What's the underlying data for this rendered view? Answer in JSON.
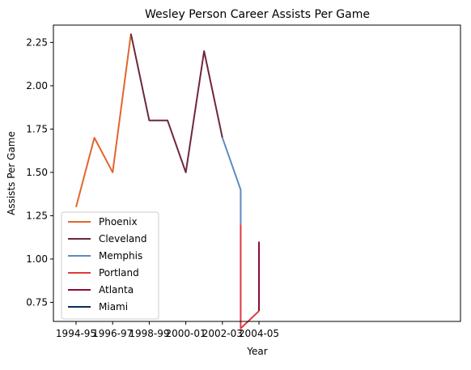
{
  "chart_data": {
    "type": "line",
    "title": "Wesley Person Career Assists Per Game",
    "xlabel": "Year",
    "ylabel": "Assists Per Game",
    "x_tick_labels": [
      "1994-95",
      "1996-97",
      "1998-99",
      "2000-01",
      "2002-03",
      "2004-05"
    ],
    "ylim": [
      0.64,
      2.35
    ],
    "y_ticks": [
      "0.75",
      "1.00",
      "1.25",
      "1.50",
      "1.75",
      "2.00",
      "2.25"
    ],
    "grid": false,
    "legend_position": "lower-left",
    "series": [
      {
        "name": "Phoenix",
        "color": "#e1662c",
        "points": [
          {
            "x": "1994-95",
            "y": 1.3
          },
          {
            "x": "1995-96",
            "y": 1.7
          },
          {
            "x": "1996-97",
            "y": 1.5
          },
          {
            "x": "1997-98",
            "y": 2.3
          }
        ]
      },
      {
        "name": "Cleveland",
        "color": "#6f263d",
        "points": [
          {
            "x": "1997-98",
            "y": 2.3
          },
          {
            "x": "1998-99",
            "y": 1.8
          },
          {
            "x": "1999-00",
            "y": 1.8
          },
          {
            "x": "2000-01",
            "y": 1.5
          },
          {
            "x": "2001-02",
            "y": 2.2
          },
          {
            "x": "2002-03",
            "y": 1.7
          }
        ]
      },
      {
        "name": "Memphis",
        "color": "#5d8bc0",
        "points": [
          {
            "x": "2002-03",
            "y": 1.7
          },
          {
            "x": "2003-04",
            "y": 1.4
          },
          {
            "x": "2003-04",
            "y": 1.2
          }
        ]
      },
      {
        "name": "Portland",
        "color": "#e03a3e",
        "points": [
          {
            "x": "2003-04",
            "y": 1.2
          },
          {
            "x": "2003-04",
            "y": 0.6
          },
          {
            "x": "2004-05",
            "y": 0.7
          }
        ]
      },
      {
        "name": "Atlanta",
        "color": "#8b0a3a",
        "points": [
          {
            "x": "2004-05",
            "y": 0.7
          },
          {
            "x": "2004-05",
            "y": 1.1
          }
        ]
      },
      {
        "name": "Miami",
        "color": "#0b2a5a",
        "points": []
      }
    ]
  }
}
